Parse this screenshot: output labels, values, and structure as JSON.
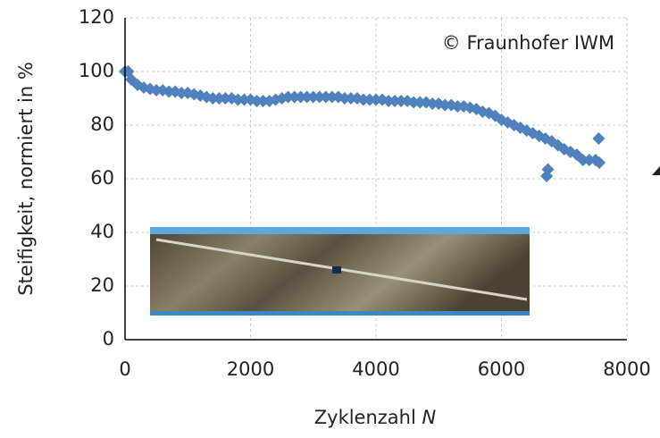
{
  "chart_data": {
    "type": "scatter",
    "annotation": "© Fraunhofer IWM",
    "ylabel": "Steifigkeit, normiert in %",
    "xlabel": "Zyklenzahl",
    "xlabel_symbol": "N",
    "color": "#4f81bd",
    "grid": true,
    "xlim": [
      0,
      8000
    ],
    "xticks": [
      0,
      2000,
      4000,
      6000,
      8000
    ],
    "ylim": [
      0,
      120
    ],
    "yticks": [
      0,
      20,
      40,
      60,
      80,
      100,
      120
    ],
    "x": [
      0,
      50,
      100,
      200,
      300,
      400,
      500,
      600,
      700,
      800,
      900,
      1000,
      1100,
      1200,
      1300,
      1400,
      1500,
      1600,
      1700,
      1800,
      1900,
      2000,
      2100,
      2200,
      2300,
      2400,
      2500,
      2600,
      2700,
      2800,
      2900,
      3000,
      3100,
      3200,
      3300,
      3400,
      3500,
      3600,
      3700,
      3800,
      3900,
      4000,
      4100,
      4200,
      4300,
      4400,
      4500,
      4600,
      4700,
      4800,
      4900,
      5000,
      5100,
      5200,
      5300,
      5400,
      5500,
      5600,
      5700,
      5800,
      5900,
      6000,
      6100,
      6200,
      6300,
      6400,
      6500,
      6600,
      6700,
      6800,
      6900,
      7000,
      7100,
      7200,
      7300,
      7400,
      7500,
      6720,
      6740,
      7550,
      7560
    ],
    "y": [
      100,
      100,
      97,
      95,
      94,
      93.5,
      93,
      93,
      92.5,
      92.5,
      92,
      92,
      91.5,
      91,
      90.5,
      90,
      90,
      90,
      90,
      89.5,
      89.5,
      89.5,
      89,
      89,
      89,
      89.5,
      90,
      90.5,
      90.5,
      90.5,
      90.5,
      90.5,
      90.5,
      90.5,
      90.5,
      90.5,
      90,
      90,
      90,
      89.5,
      89.5,
      89.5,
      89.5,
      89,
      89,
      89,
      89,
      88.5,
      88.5,
      88.5,
      88,
      88,
      87.5,
      87.5,
      87,
      87,
      86.5,
      86,
      85,
      84.5,
      83.5,
      82,
      81,
      80,
      79,
      78,
      77,
      76,
      75,
      74,
      72.5,
      71,
      70,
      69,
      67,
      67,
      67,
      61,
      63.5,
      75,
      66
    ]
  }
}
